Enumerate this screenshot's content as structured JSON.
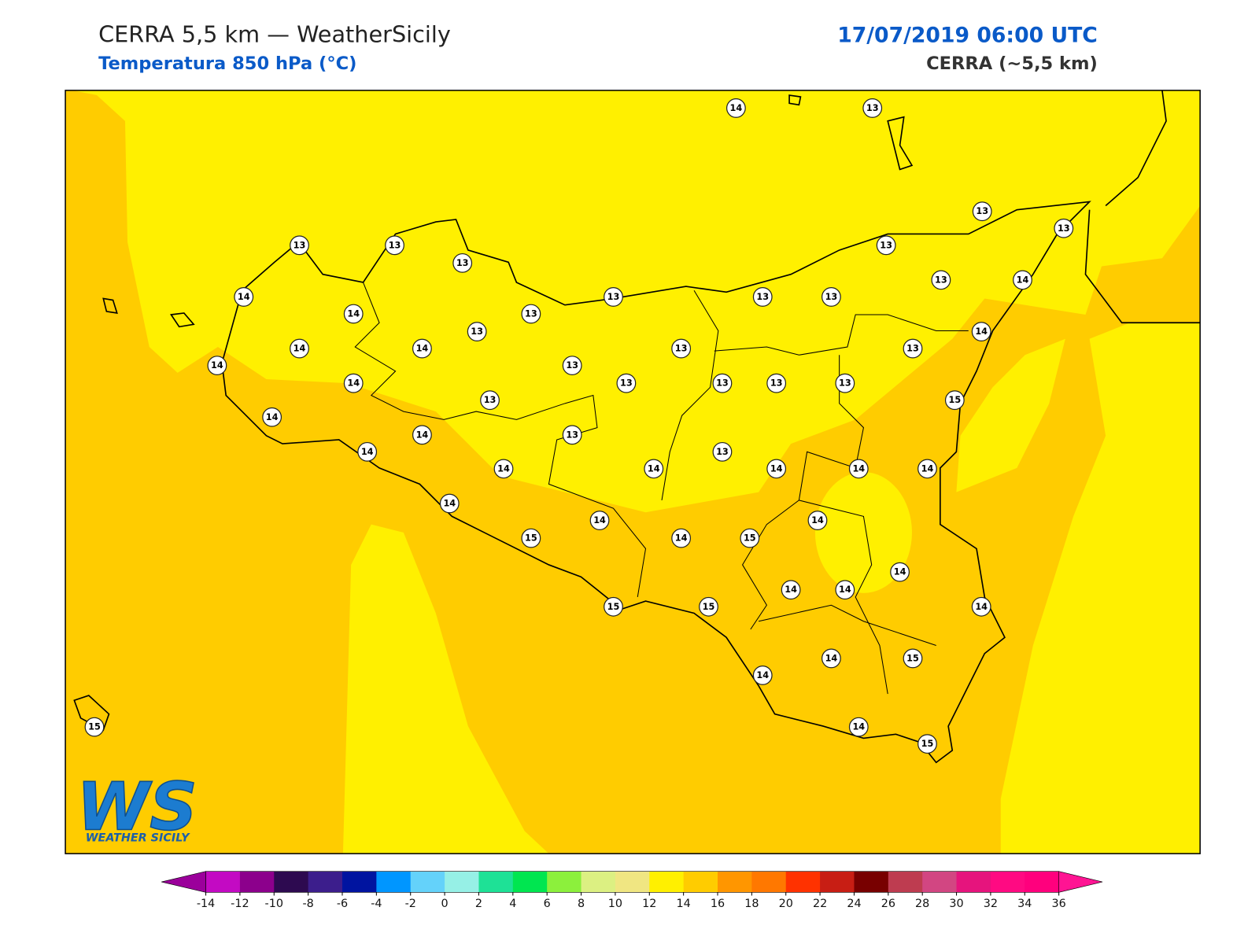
{
  "header": {
    "title": "CERRA 5,5 km — WeatherSicily",
    "subtitle": "Temperatura 850 hPa (°C)",
    "date": "17/07/2019 06:00 UTC",
    "source": "CERRA (~5,5 km)"
  },
  "stations": [
    14,
    13,
    13,
    13,
    13,
    13,
    13,
    13,
    13,
    14,
    14,
    13,
    13,
    13,
    14,
    13,
    13,
    14,
    14,
    14,
    13,
    13,
    14,
    13,
    14,
    13,
    13,
    13,
    13,
    13,
    15,
    14,
    14,
    13,
    14,
    13,
    14,
    14,
    14,
    14,
    14,
    14,
    14,
    14,
    15,
    14,
    15,
    14,
    14,
    14,
    15,
    15,
    14,
    14,
    15,
    14,
    15,
    14,
    15
  ],
  "colorbar": {
    "ticks": [
      -14,
      -12,
      -10,
      -8,
      -6,
      -4,
      -2,
      0,
      2,
      4,
      6,
      8,
      10,
      12,
      14,
      16,
      18,
      20,
      22,
      24,
      26,
      28,
      30,
      32,
      34,
      36
    ],
    "colors": [
      "#c30ac3",
      "#8c008c",
      "#2d0a50",
      "#3c1e8c",
      "#0014a0",
      "#0096ff",
      "#64d2fa",
      "#96f0e6",
      "#1ee196",
      "#00e650",
      "#8cf03c",
      "#dcf082",
      "#f0e682",
      "#fff000",
      "#ffcc00",
      "#ff9600",
      "#ff7800",
      "#ff3200",
      "#c81e14",
      "#780000",
      "#be3c50",
      "#d24682",
      "#e6147d",
      "#ff0a82",
      "#ff007d"
    ],
    "under_color": "#9b009b",
    "over_color": "#ff1493"
  },
  "logo": {
    "mark": "WS",
    "text": "WEATHER SICILY"
  }
}
